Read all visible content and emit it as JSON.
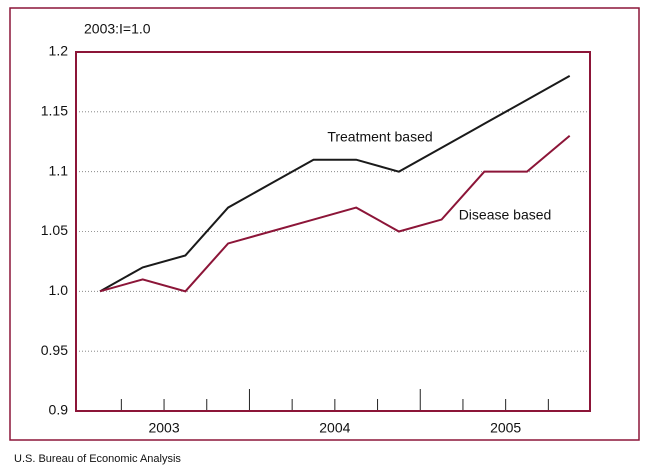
{
  "chart_data": {
    "type": "line",
    "unit_label": "2003:I=1.0",
    "source": "U.S. Bureau of Economic Analysis",
    "categories": [
      null,
      null,
      null,
      null,
      null,
      null,
      null,
      null,
      null,
      null,
      null,
      null
    ],
    "year_labels": [
      "2003",
      "2004",
      "2005"
    ],
    "series": [
      {
        "name": "Treatment based",
        "color": "#1a1a1a",
        "values": [
          1.0,
          1.02,
          1.03,
          1.07,
          1.09,
          1.11,
          1.11,
          1.1,
          1.12,
          1.14,
          1.16,
          1.18
        ]
      },
      {
        "name": "Disease based",
        "color": "#8c1538",
        "values": [
          1.0,
          1.01,
          1.0,
          1.04,
          1.05,
          1.06,
          1.07,
          1.05,
          1.06,
          1.1,
          1.1,
          1.13
        ]
      }
    ],
    "ylim": [
      0.9,
      1.2
    ],
    "yticks": [
      0.9,
      0.95,
      {
        "value": 1,
        "label": "1.0"
      },
      1.05,
      1.1,
      1.15,
      1.2
    ],
    "grid": true
  }
}
